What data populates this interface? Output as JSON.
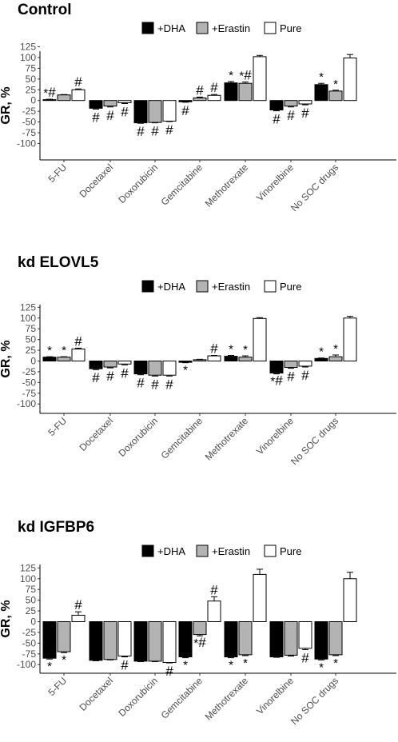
{
  "chart_data": [
    {
      "type": "bar",
      "title": "Control",
      "xlabel": "",
      "ylabel": "GR, %",
      "ylim": [
        -125,
        125
      ],
      "yticks": [
        125,
        100,
        75,
        50,
        25,
        0,
        -25,
        -50,
        -75,
        -100
      ],
      "grid": false,
      "legend": "top",
      "categories": [
        "5-FU",
        "Docetaxel",
        "Doxorubicin",
        "Gemcitabine",
        "Methotrexate",
        "Vinorelbine",
        "No SOC drugs"
      ],
      "series": [
        {
          "name": "+DHA",
          "color": "#000000",
          "values": [
            2,
            -18,
            -52,
            -3,
            41,
            -22,
            37
          ],
          "errors": [
            1,
            2,
            1,
            1,
            3,
            2,
            3
          ],
          "marks": [
            "*#",
            "#",
            "#",
            "#",
            "*",
            "#",
            "*"
          ]
        },
        {
          "name": "+Erastin",
          "color": "#b3b3b3",
          "values": [
            13,
            -13,
            -51,
            6,
            40,
            -13,
            22
          ],
          "errors": [
            1,
            2,
            1,
            2,
            3,
            2,
            2
          ],
          "marks": [
            "",
            "#",
            "#",
            "#",
            "*#",
            "#",
            "*"
          ]
        },
        {
          "name": "Pure",
          "color": "#ffffff",
          "values": [
            25,
            -5,
            -48,
            12,
            102,
            -8,
            99
          ],
          "errors": [
            2,
            2,
            1,
            2,
            3,
            2,
            8
          ],
          "marks": [
            "#",
            "#",
            "#",
            "#",
            "",
            "#",
            ""
          ]
        }
      ]
    },
    {
      "type": "bar",
      "title": "kd ELOVL5",
      "xlabel": "",
      "ylabel": "GR, %",
      "ylim": [
        -125,
        125
      ],
      "yticks": [
        125,
        100,
        75,
        50,
        25,
        0,
        -25,
        -50,
        -75,
        -100
      ],
      "grid": false,
      "legend": "top",
      "categories": [
        "5-FU",
        "Docetaxel",
        "Doxorubicin",
        "Gemcitabine",
        "Methotrexate",
        "Vinorelbine",
        "No SOC drugs"
      ],
      "series": [
        {
          "name": "+DHA",
          "color": "#000000",
          "values": [
            9,
            -18,
            -30,
            -3,
            11,
            -28,
            6
          ],
          "errors": [
            1,
            2,
            2,
            1,
            2,
            2,
            1
          ],
          "marks": [
            "*",
            "#",
            "#",
            "*",
            "*",
            "*#",
            "*"
          ]
        },
        {
          "name": "+Erastin",
          "color": "#b3b3b3",
          "values": [
            9,
            -14,
            -33,
            3,
            9,
            -15,
            10
          ],
          "errors": [
            1,
            2,
            2,
            1,
            3,
            2,
            4
          ],
          "marks": [
            "*",
            "#",
            "#",
            "",
            "*",
            "#",
            "*"
          ]
        },
        {
          "name": "Pure",
          "color": "#ffffff",
          "values": [
            28,
            -7,
            -33,
            12,
            99,
            -12,
            100
          ],
          "errors": [
            2,
            2,
            2,
            1,
            2,
            2,
            4
          ],
          "marks": [
            "#",
            "#",
            "#",
            "#",
            "",
            "#",
            ""
          ]
        }
      ]
    },
    {
      "type": "bar",
      "title": "kd IGFBP6",
      "xlabel": "",
      "ylabel": "GR, %",
      "ylim": [
        -125,
        125
      ],
      "yticks": [
        125,
        100,
        75,
        50,
        25,
        0,
        -25,
        -50,
        -75,
        -100
      ],
      "grid": false,
      "legend": "top",
      "categories": [
        "5-FU",
        "Docetaxel",
        "Doxorubicin",
        "Gemcitabine",
        "Methotrexate",
        "Vinorelbine",
        "No SOC drugs"
      ],
      "series": [
        {
          "name": "+DHA",
          "color": "#000000",
          "values": [
            -85,
            -90,
            -92,
            -82,
            -82,
            -82,
            -87
          ],
          "errors": [
            2,
            1,
            1,
            2,
            2,
            1,
            2
          ],
          "marks": [
            "*",
            "",
            "",
            "*",
            "*",
            "",
            "*"
          ]
        },
        {
          "name": "+Erastin",
          "color": "#b3b3b3",
          "values": [
            -70,
            -88,
            -92,
            -30,
            -77,
            -78,
            -77
          ],
          "errors": [
            2,
            1,
            1,
            3,
            2,
            2,
            2
          ],
          "marks": [
            "*",
            "",
            "",
            "*#",
            "*",
            "",
            "*"
          ]
        },
        {
          "name": "Pure",
          "color": "#ffffff",
          "values": [
            15,
            -80,
            -95,
            48,
            110,
            -62,
            100
          ],
          "errors": [
            8,
            2,
            1,
            10,
            12,
            3,
            15
          ],
          "marks": [
            "#",
            "#",
            "#",
            "#",
            "",
            "#",
            ""
          ]
        }
      ]
    }
  ]
}
